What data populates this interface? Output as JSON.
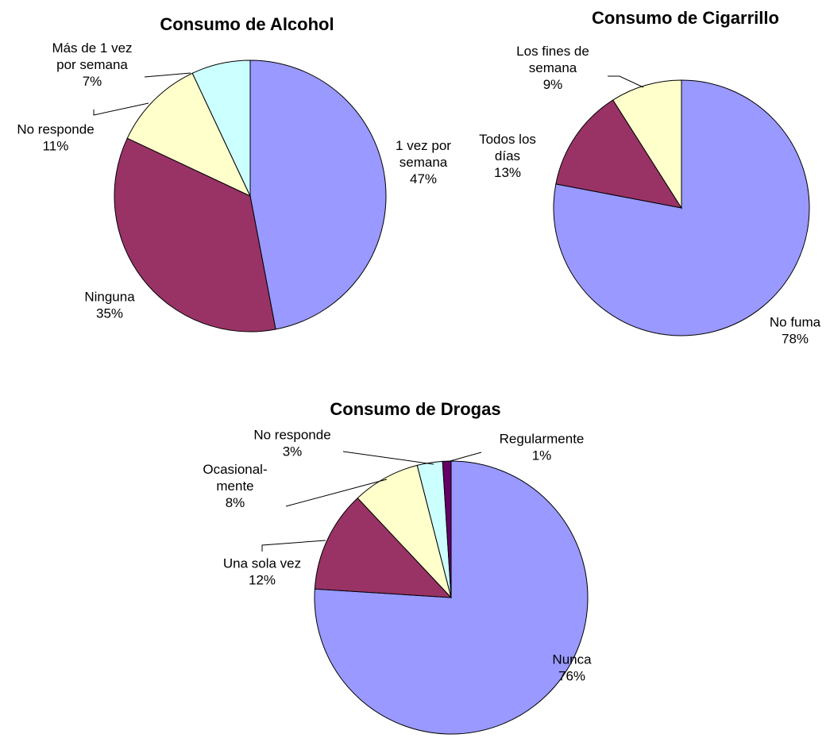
{
  "chart_data": [
    {
      "type": "pie",
      "title": "Consumo de Alcohol",
      "slices": [
        {
          "label": [
            "1 vez por",
            "semana"
          ],
          "value": 47,
          "value_label": "47%",
          "color": "#9999ff"
        },
        {
          "label": [
            "Ninguna"
          ],
          "value": 35,
          "value_label": "35%",
          "color": "#993366"
        },
        {
          "label": [
            "No responde"
          ],
          "value": 11,
          "value_label": "11%",
          "color": "#ffffcc"
        },
        {
          "label": [
            "Más de 1 vez",
            "por semana"
          ],
          "value": 7,
          "value_label": "7%",
          "color": "#ccffff"
        }
      ]
    },
    {
      "type": "pie",
      "title": "Consumo de Cigarrillo",
      "slices": [
        {
          "label": [
            "No fuma"
          ],
          "value": 78,
          "value_label": "78%",
          "color": "#9999ff"
        },
        {
          "label": [
            "Todos los",
            "días"
          ],
          "value": 13,
          "value_label": "13%",
          "color": "#993366"
        },
        {
          "label": [
            "Los fines de",
            "semana"
          ],
          "value": 9,
          "value_label": "9%",
          "color": "#ffffcc"
        }
      ]
    },
    {
      "type": "pie",
      "title": "Consumo de Drogas",
      "slices": [
        {
          "label": [
            "Nunca"
          ],
          "value": 76,
          "value_label": "76%",
          "color": "#9999ff"
        },
        {
          "label": [
            "Una sola vez"
          ],
          "value": 12,
          "value_label": "12%",
          "color": "#993366"
        },
        {
          "label": [
            "Ocasional-",
            "mente"
          ],
          "value": 8,
          "value_label": "8%",
          "color": "#ffffcc"
        },
        {
          "label": [
            "No responde"
          ],
          "value": 3,
          "value_label": "3%",
          "color": "#ccffff"
        },
        {
          "label": [
            "Regularmente"
          ],
          "value": 1,
          "value_label": "1%",
          "color": "#660066"
        }
      ]
    }
  ]
}
